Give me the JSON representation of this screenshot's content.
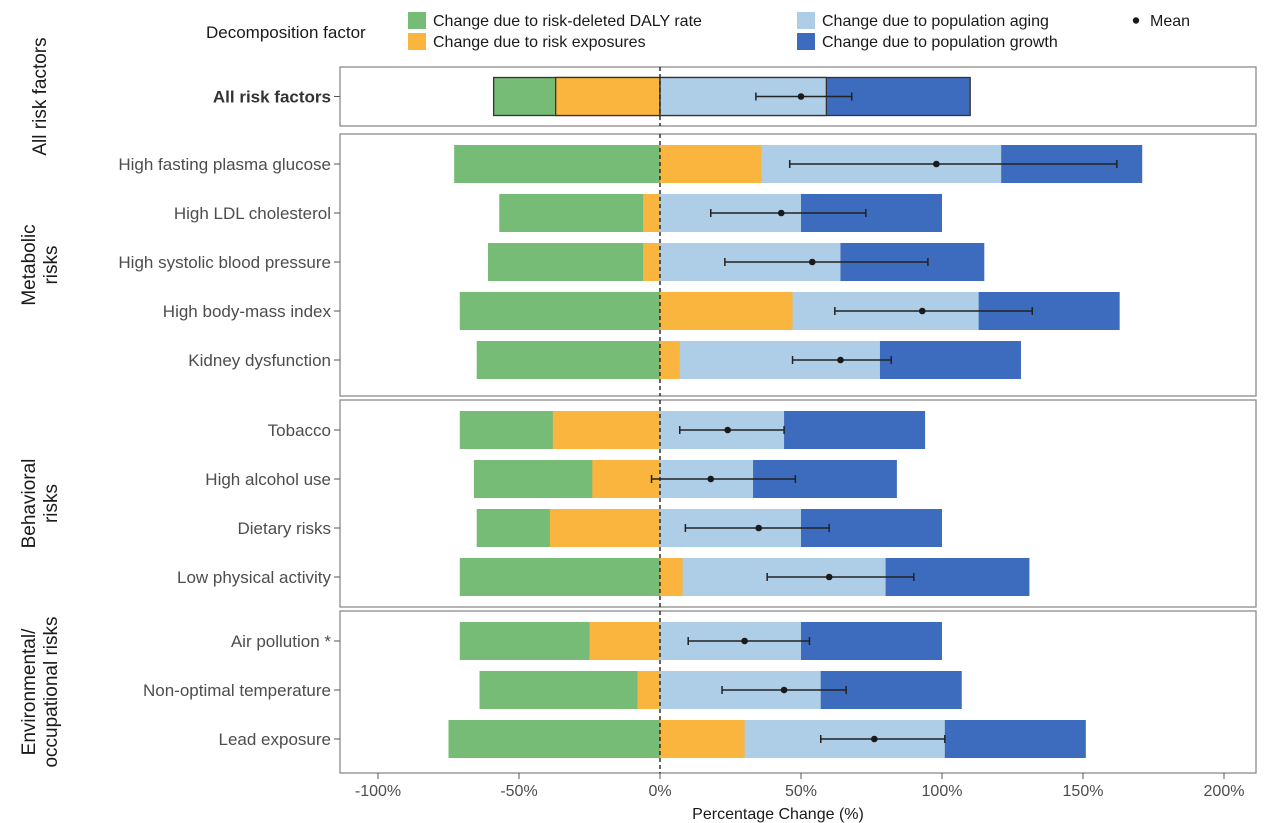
{
  "chart_data": {
    "type": "bar",
    "orientation": "horizontal",
    "stacked": true,
    "xlabel": "Percentage Change (%)",
    "xlim": [
      -110,
      212
    ],
    "xticks": [
      -100,
      -50,
      0,
      50,
      100,
      150,
      200
    ],
    "xtick_labels": [
      "-100%",
      "-50%",
      "0%",
      "50%",
      "100%",
      "150%",
      "200%"
    ],
    "reference_line": 0,
    "legend": {
      "title": "Decomposition factor",
      "placement": "top",
      "items": [
        {
          "label": "Change due to risk-deleted DALY rate",
          "color": "#76bb76"
        },
        {
          "label": "Change due to risk exposures",
          "color": "#f9b53d"
        },
        {
          "label": "Change due to population aging",
          "color": "#aecde6"
        },
        {
          "label": "Change due to population growth",
          "color": "#3d6bbd"
        },
        {
          "label": "Mean",
          "marker": "point"
        }
      ]
    },
    "facets": [
      {
        "label": "All risk factors",
        "label_lines": [
          "All risk factors"
        ],
        "rows": [
          {
            "name": "All risk factors",
            "bold": true,
            "outlined": true,
            "daly_rate": -59,
            "exposures": -37,
            "aging": 59,
            "growth": 110,
            "mean": 50,
            "lo": 34,
            "hi": 68
          }
        ]
      },
      {
        "label": "Metabolic risks",
        "label_lines": [
          "Metabolic",
          "risks"
        ],
        "rows": [
          {
            "name": "High fasting plasma glucose",
            "daly_rate": -73,
            "exposures": 0,
            "aging": 121,
            "growth": 171,
            "exposure_pos": 36,
            "mean": 98,
            "lo": 46,
            "hi": 162
          },
          {
            "name": "High LDL cholesterol",
            "daly_rate": -57,
            "exposures": -6,
            "aging": 50,
            "growth": 100,
            "mean": 43,
            "lo": 18,
            "hi": 73
          },
          {
            "name": "High systolic blood pressure",
            "daly_rate": -61,
            "exposures": -6,
            "aging": 64,
            "growth": 115,
            "mean": 54,
            "lo": 23,
            "hi": 95
          },
          {
            "name": "High body-mass index",
            "daly_rate": -71,
            "exposures": 0,
            "aging": 113,
            "growth": 163,
            "exposure_pos": 47,
            "mean": 93,
            "lo": 62,
            "hi": 132
          },
          {
            "name": "Kidney dysfunction",
            "daly_rate": -65,
            "exposures": 0,
            "aging": 78,
            "growth": 128,
            "exposure_pos": 7,
            "mean": 64,
            "lo": 47,
            "hi": 82
          }
        ]
      },
      {
        "label": "Behavioral risks",
        "label_lines": [
          "Behavioral",
          "risks"
        ],
        "rows": [
          {
            "name": "Tobacco",
            "daly_rate": -71,
            "exposures": -38,
            "aging": 44,
            "growth": 94,
            "mean": 24,
            "lo": 7,
            "hi": 44
          },
          {
            "name": "High alcohol use",
            "daly_rate": -66,
            "exposures": -24,
            "aging": 33,
            "growth": 84,
            "mean": 18,
            "lo": -3,
            "hi": 48
          },
          {
            "name": "Dietary risks",
            "daly_rate": -65,
            "exposures": -39,
            "aging": 50,
            "growth": 100,
            "mean": 35,
            "lo": 9,
            "hi": 60
          },
          {
            "name": "Low physical activity",
            "daly_rate": -71,
            "exposures": 0,
            "aging": 80,
            "growth": 131,
            "exposure_pos": 8,
            "mean": 60,
            "lo": 38,
            "hi": 90
          }
        ]
      },
      {
        "label": "Environmental/ occupational risks",
        "label_lines": [
          "Environmental/",
          "occupational risks"
        ],
        "rows": [
          {
            "name": "Air pollution *",
            "daly_rate": -71,
            "exposures": -25,
            "aging": 50,
            "growth": 100,
            "mean": 30,
            "lo": 10,
            "hi": 53
          },
          {
            "name": "Non-optimal temperature",
            "daly_rate": -64,
            "exposures": -8,
            "aging": 57,
            "growth": 107,
            "mean": 44,
            "lo": 22,
            "hi": 66
          },
          {
            "name": "Lead exposure",
            "daly_rate": -75,
            "exposures": 0,
            "aging": 101,
            "growth": 151,
            "exposure_pos": 30,
            "mean": 76,
            "lo": 57,
            "hi": 101
          }
        ]
      }
    ]
  }
}
